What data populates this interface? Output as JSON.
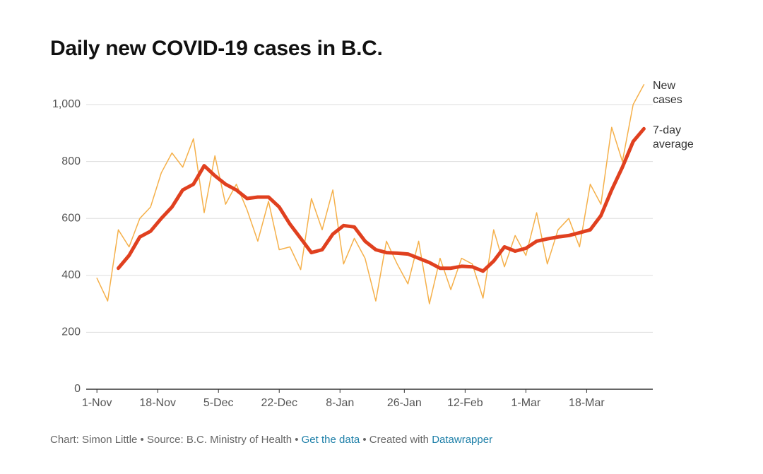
{
  "chart_data": {
    "type": "line",
    "title": "Daily new COVID-19 cases in B.C.",
    "x": [
      0,
      3,
      6,
      9,
      12,
      15,
      18,
      21,
      24,
      27,
      30,
      33,
      36,
      39,
      42,
      45,
      48,
      51,
      54,
      57,
      60,
      63,
      66,
      69,
      72,
      75,
      78,
      81,
      84,
      87,
      90,
      93,
      96,
      99,
      102,
      105,
      108,
      111,
      114,
      117,
      120,
      123,
      126,
      129,
      132,
      135,
      138,
      141,
      144,
      147,
      150,
      153
    ],
    "series": [
      {
        "name": "New cases",
        "color": "#f5b04a",
        "width": 1.5,
        "values": [
          390,
          310,
          560,
          500,
          600,
          640,
          760,
          830,
          780,
          880,
          620,
          820,
          650,
          720,
          630,
          520,
          660,
          490,
          500,
          420,
          670,
          560,
          700,
          440,
          530,
          460,
          310,
          520,
          440,
          370,
          520,
          300,
          460,
          350,
          460,
          440,
          320,
          560,
          430,
          540,
          470,
          620,
          440,
          560,
          600,
          500,
          720,
          650,
          920,
          800,
          1000,
          1070
        ]
      },
      {
        "name": "7-day average",
        "color": "#e0401f",
        "width": 5,
        "values": [
          null,
          null,
          425,
          470,
          535,
          555,
          600,
          640,
          700,
          720,
          785,
          750,
          720,
          700,
          670,
          675,
          675,
          640,
          580,
          530,
          480,
          490,
          545,
          575,
          570,
          520,
          490,
          480,
          478,
          475,
          460,
          445,
          425,
          425,
          432,
          430,
          415,
          450,
          500,
          485,
          495,
          520,
          528,
          535,
          540,
          550,
          560,
          610,
          700,
          780,
          870,
          915
        ]
      }
    ],
    "xlim": [
      -3,
      155.5
    ],
    "xticks": [
      {
        "value": 0,
        "label": "1-Nov"
      },
      {
        "value": 17,
        "label": "18-Nov"
      },
      {
        "value": 34,
        "label": "5-Dec"
      },
      {
        "value": 51,
        "label": "22-Dec"
      },
      {
        "value": 68,
        "label": "8-Jan"
      },
      {
        "value": 86,
        "label": "26-Jan"
      },
      {
        "value": 103,
        "label": "12-Feb"
      },
      {
        "value": 120,
        "label": "1-Mar"
      },
      {
        "value": 137,
        "label": "18-Mar"
      }
    ],
    "ylim": [
      0,
      1000
    ],
    "yticks": [
      0,
      200,
      400,
      600,
      800,
      {
        "value": 1000,
        "label": "1,000"
      }
    ],
    "grid": true,
    "footer": [
      "Chart: Simon Little • Source: B.C. Ministry of Health •",
      "Get the data",
      "• Created with",
      "Datawrapper"
    ]
  }
}
